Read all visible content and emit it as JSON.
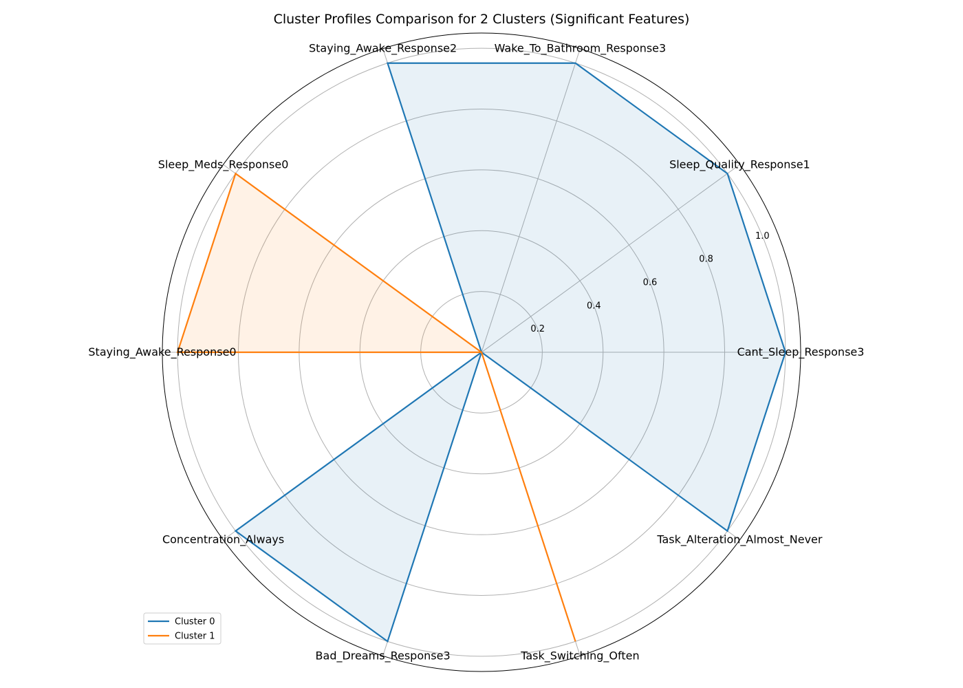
{
  "chart_data": {
    "type": "radar",
    "title": "Cluster Profiles Comparison for 2 Clusters (Significant Features)",
    "categories": [
      "Cant_Sleep_Response3",
      "Sleep_Quality_Response1",
      "Wake_To_Bathroom_Response3",
      "Staying_Awake_Response2",
      "Sleep_Meds_Response0",
      "Staying_Awake_Response0",
      "Concentration_Always",
      "Bad_Dreams_Response3",
      "Task_Switching_Often",
      "Task_Alteration_Almost_Never"
    ],
    "series": [
      {
        "name": "Cluster 0",
        "color": "#1f77b4",
        "values": [
          1.0,
          1.0,
          1.0,
          1.0,
          0.0,
          0.0,
          1.0,
          1.0,
          0.0,
          1.0
        ]
      },
      {
        "name": "Cluster 1",
        "color": "#ff7f0e",
        "values": [
          0.0,
          0.0,
          0.0,
          0.0,
          1.0,
          1.0,
          0.0,
          0.0,
          1.0,
          0.0
        ]
      }
    ],
    "rlim": [
      0,
      1.05
    ],
    "rticks": [
      0.2,
      0.4,
      0.6,
      0.8,
      1.0
    ],
    "rtick_labels": [
      "0.2",
      "0.4",
      "0.6",
      "0.8",
      "1.0"
    ],
    "grid": true,
    "legend_position": "lower-left",
    "fill_opacity": 0.1
  }
}
